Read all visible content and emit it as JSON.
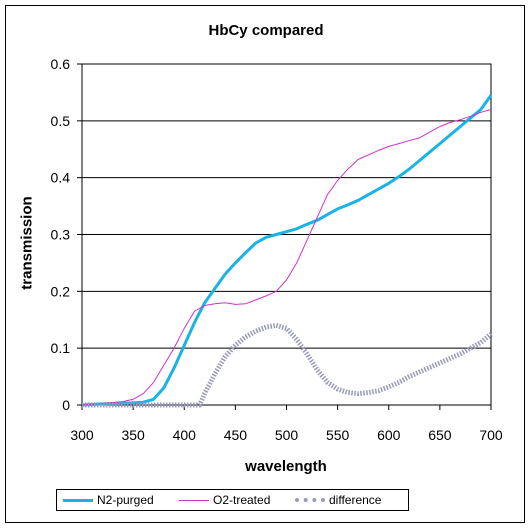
{
  "chart_data": {
    "type": "line",
    "title": "HbCy compared",
    "xlabel": "wavelength",
    "ylabel": "transmission",
    "xlim": [
      300,
      700
    ],
    "ylim": [
      0,
      0.6
    ],
    "x_ticks": [
      "300",
      "350",
      "400",
      "450",
      "500",
      "550",
      "600",
      "650",
      "700"
    ],
    "y_ticks": [
      "0",
      "0.1",
      "0.2",
      "0.3",
      "0.4",
      "0.5",
      "0.6"
    ],
    "grid": "horizontal",
    "legend_position": "bottom",
    "series": [
      {
        "name": "N2-purged",
        "color": "#1ab3e6",
        "x": [
          300,
          320,
          340,
          360,
          370,
          380,
          390,
          400,
          410,
          420,
          430,
          440,
          450,
          460,
          470,
          480,
          490,
          500,
          510,
          520,
          530,
          540,
          550,
          560,
          570,
          580,
          590,
          600,
          610,
          620,
          630,
          640,
          650,
          660,
          670,
          680,
          690,
          700
        ],
        "y": [
          0.0,
          0.002,
          0.003,
          0.005,
          0.01,
          0.03,
          0.065,
          0.105,
          0.145,
          0.18,
          0.205,
          0.23,
          0.25,
          0.268,
          0.285,
          0.295,
          0.3,
          0.305,
          0.31,
          0.318,
          0.325,
          0.335,
          0.345,
          0.352,
          0.36,
          0.37,
          0.38,
          0.39,
          0.402,
          0.415,
          0.43,
          0.445,
          0.46,
          0.475,
          0.49,
          0.505,
          0.52,
          0.545
        ]
      },
      {
        "name": "O2-treated",
        "color": "#cc33cc",
        "x": [
          300,
          320,
          340,
          350,
          360,
          370,
          380,
          390,
          400,
          410,
          420,
          430,
          440,
          450,
          460,
          470,
          480,
          490,
          500,
          510,
          520,
          530,
          540,
          550,
          560,
          570,
          580,
          590,
          600,
          610,
          620,
          630,
          640,
          650,
          660,
          670,
          680,
          690,
          700
        ],
        "y": [
          0.0,
          0.003,
          0.006,
          0.01,
          0.02,
          0.04,
          0.07,
          0.1,
          0.135,
          0.165,
          0.175,
          0.178,
          0.18,
          0.177,
          0.178,
          0.185,
          0.192,
          0.2,
          0.22,
          0.25,
          0.29,
          0.33,
          0.37,
          0.395,
          0.415,
          0.432,
          0.44,
          0.448,
          0.455,
          0.46,
          0.465,
          0.47,
          0.48,
          0.49,
          0.497,
          0.502,
          0.508,
          0.515,
          0.52
        ]
      },
      {
        "name": "difference",
        "color": "#9999bb",
        "x": [
          300,
          320,
          340,
          360,
          380,
          400,
          415,
          420,
          430,
          440,
          450,
          460,
          470,
          480,
          490,
          500,
          510,
          520,
          530,
          540,
          550,
          560,
          570,
          580,
          590,
          600,
          610,
          620,
          630,
          640,
          650,
          660,
          670,
          680,
          690,
          700
        ],
        "y": [
          0.0,
          0.0,
          0.0,
          0.0,
          0.0,
          0.0,
          0.0,
          0.02,
          0.055,
          0.085,
          0.105,
          0.12,
          0.13,
          0.137,
          0.14,
          0.135,
          0.115,
          0.09,
          0.062,
          0.04,
          0.028,
          0.022,
          0.02,
          0.022,
          0.025,
          0.032,
          0.04,
          0.05,
          0.058,
          0.066,
          0.074,
          0.082,
          0.09,
          0.1,
          0.11,
          0.125
        ]
      }
    ]
  }
}
